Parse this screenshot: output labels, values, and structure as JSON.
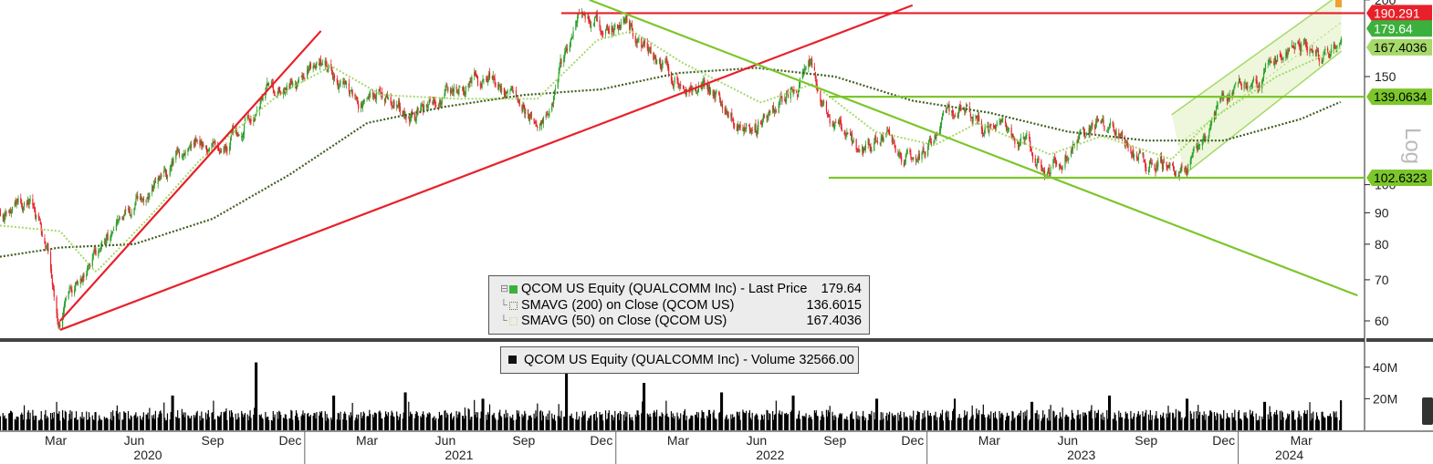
{
  "chart_data": [
    {
      "type": "candlestick",
      "title": "",
      "yscale": "log",
      "ylim": [
        55,
        200
      ],
      "y_axis_label": "Log",
      "y_ticks": [
        60,
        70,
        80,
        90,
        100,
        150,
        200
      ],
      "x_ticks": [
        "Mar",
        "Jun",
        "Sep",
        "Dec",
        "Mar",
        "Jun",
        "Sep",
        "Dec",
        "Mar",
        "Jun",
        "Sep",
        "Dec",
        "Mar",
        "Jun",
        "Sep",
        "Dec",
        "Mar"
      ],
      "x_years": [
        "2020",
        "2021",
        "2022",
        "2023",
        "2024"
      ],
      "price_path": [
        {
          "date": "2020-01-01",
          "close": 88
        },
        {
          "date": "2020-02-10",
          "close": 92
        },
        {
          "date": "2020-03-05",
          "close": 82
        },
        {
          "date": "2020-03-20",
          "close": 60
        },
        {
          "date": "2020-04-15",
          "close": 72
        },
        {
          "date": "2020-05-15",
          "close": 80
        },
        {
          "date": "2020-06-15",
          "close": 90
        },
        {
          "date": "2020-07-20",
          "close": 100
        },
        {
          "date": "2020-08-20",
          "close": 118
        },
        {
          "date": "2020-09-20",
          "close": 115
        },
        {
          "date": "2020-10-20",
          "close": 125
        },
        {
          "date": "2020-11-20",
          "close": 145
        },
        {
          "date": "2020-12-20",
          "close": 150
        },
        {
          "date": "2021-01-15",
          "close": 162
        },
        {
          "date": "2021-02-01",
          "close": 158
        },
        {
          "date": "2021-03-05",
          "close": 132
        },
        {
          "date": "2021-04-10",
          "close": 140
        },
        {
          "date": "2021-05-10",
          "close": 132
        },
        {
          "date": "2021-06-15",
          "close": 140
        },
        {
          "date": "2021-07-15",
          "close": 145
        },
        {
          "date": "2021-08-10",
          "close": 148
        },
        {
          "date": "2021-09-10",
          "close": 138
        },
        {
          "date": "2021-10-10",
          "close": 128
        },
        {
          "date": "2021-11-01",
          "close": 160
        },
        {
          "date": "2021-11-20",
          "close": 185
        },
        {
          "date": "2021-12-20",
          "close": 182
        },
        {
          "date": "2022-01-10",
          "close": 185
        },
        {
          "date": "2022-02-15",
          "close": 165
        },
        {
          "date": "2022-03-10",
          "close": 150
        },
        {
          "date": "2022-04-10",
          "close": 145
        },
        {
          "date": "2022-05-10",
          "close": 135
        },
        {
          "date": "2022-06-15",
          "close": 125
        },
        {
          "date": "2022-07-20",
          "close": 145
        },
        {
          "date": "2022-08-15",
          "close": 155
        },
        {
          "date": "2022-09-15",
          "close": 125
        },
        {
          "date": "2022-10-15",
          "close": 110
        },
        {
          "date": "2022-11-15",
          "close": 122
        },
        {
          "date": "2022-12-20",
          "close": 108
        },
        {
          "date": "2023-01-25",
          "close": 128
        },
        {
          "date": "2023-02-15",
          "close": 136
        },
        {
          "date": "2023-03-20",
          "close": 122
        },
        {
          "date": "2023-04-20",
          "close": 118
        },
        {
          "date": "2023-05-20",
          "close": 104
        },
        {
          "date": "2023-06-20",
          "close": 118
        },
        {
          "date": "2023-07-25",
          "close": 128
        },
        {
          "date": "2023-08-25",
          "close": 112
        },
        {
          "date": "2023-09-25",
          "close": 110
        },
        {
          "date": "2023-10-30",
          "close": 106
        },
        {
          "date": "2023-11-30",
          "close": 128
        },
        {
          "date": "2023-12-30",
          "close": 144
        },
        {
          "date": "2024-01-30",
          "close": 148
        },
        {
          "date": "2024-02-25",
          "close": 166
        },
        {
          "date": "2024-03-20",
          "close": 170
        },
        {
          "date": "2024-04-15",
          "close": 160
        },
        {
          "date": "2024-05-01",
          "close": 179.64
        }
      ],
      "sma200_path": [
        {
          "date": "2020-01-01",
          "value": 76
        },
        {
          "date": "2020-03-20",
          "value": 79
        },
        {
          "date": "2020-06-15",
          "value": 80
        },
        {
          "date": "2020-09-15",
          "value": 88
        },
        {
          "date": "2020-12-15",
          "value": 104
        },
        {
          "date": "2021-03-15",
          "value": 126
        },
        {
          "date": "2021-06-15",
          "value": 134
        },
        {
          "date": "2021-09-15",
          "value": 140
        },
        {
          "date": "2021-12-15",
          "value": 143
        },
        {
          "date": "2022-03-15",
          "value": 152
        },
        {
          "date": "2022-06-15",
          "value": 155
        },
        {
          "date": "2022-09-15",
          "value": 150
        },
        {
          "date": "2022-12-15",
          "value": 137
        },
        {
          "date": "2023-03-15",
          "value": 131
        },
        {
          "date": "2023-06-15",
          "value": 122
        },
        {
          "date": "2023-09-15",
          "value": 118
        },
        {
          "date": "2023-12-15",
          "value": 118
        },
        {
          "date": "2024-03-15",
          "value": 128
        },
        {
          "date": "2024-05-01",
          "value": 136.6015
        }
      ],
      "sma50_path": [
        {
          "date": "2020-01-01",
          "value": 86
        },
        {
          "date": "2020-03-20",
          "value": 84
        },
        {
          "date": "2020-05-01",
          "value": 72
        },
        {
          "date": "2020-07-01",
          "value": 88
        },
        {
          "date": "2020-09-01",
          "value": 110
        },
        {
          "date": "2020-12-01",
          "value": 140
        },
        {
          "date": "2021-02-01",
          "value": 156
        },
        {
          "date": "2021-04-01",
          "value": 140
        },
        {
          "date": "2021-07-01",
          "value": 138
        },
        {
          "date": "2021-10-01",
          "value": 138
        },
        {
          "date": "2021-12-10",
          "value": 172
        },
        {
          "date": "2022-01-20",
          "value": 178
        },
        {
          "date": "2022-03-20",
          "value": 158
        },
        {
          "date": "2022-06-20",
          "value": 136
        },
        {
          "date": "2022-08-20",
          "value": 146
        },
        {
          "date": "2022-11-01",
          "value": 122
        },
        {
          "date": "2023-01-10",
          "value": 116
        },
        {
          "date": "2023-03-01",
          "value": 126
        },
        {
          "date": "2023-05-25",
          "value": 112
        },
        {
          "date": "2023-07-25",
          "value": 120
        },
        {
          "date": "2023-10-15",
          "value": 110
        },
        {
          "date": "2023-12-01",
          "value": 128
        },
        {
          "date": "2024-02-15",
          "value": 150
        },
        {
          "date": "2024-05-01",
          "value": 167.4036
        }
      ],
      "trendlines": [
        {
          "name": "red-support-steep",
          "color": "#e8202a",
          "points": [
            {
              "date": "2020-03-20",
              "value": 60
            },
            {
              "date": "2021-01-20",
              "value": 178
            }
          ]
        },
        {
          "name": "red-support-long",
          "color": "#e8202a",
          "points": [
            {
              "date": "2020-03-20",
              "value": 58
            },
            {
              "date": "2022-12-15",
              "value": 196
            }
          ]
        },
        {
          "name": "red-resistance",
          "color": "#e8202a",
          "points": [
            {
              "date": "2021-10-15",
              "value": 190.291
            },
            {
              "date": "2024-05-01",
              "value": 190.291
            }
          ]
        },
        {
          "name": "green-downtrend",
          "color": "#7cc62b",
          "points": [
            {
              "date": "2021-12-01",
              "value": 200
            },
            {
              "date": "2024-05-20",
              "value": 66
            }
          ]
        },
        {
          "name": "green-resistance",
          "color": "#7cc62b",
          "points": [
            {
              "date": "2022-09-01",
              "value": 139.0634
            },
            {
              "date": "2024-05-01",
              "value": 139.0634
            }
          ]
        },
        {
          "name": "green-support",
          "color": "#7cc62b",
          "points": [
            {
              "date": "2022-09-01",
              "value": 102.6323
            },
            {
              "date": "2024-05-01",
              "value": 102.6323
            }
          ]
        }
      ],
      "channel": {
        "color": "#a6d96a",
        "lower": [
          {
            "date": "2023-10-30",
            "value": 104
          },
          {
            "date": "2024-05-01",
            "value": 165
          }
        ],
        "upper": [
          {
            "date": "2023-10-15",
            "value": 130
          },
          {
            "date": "2024-05-01",
            "value": 205
          }
        ]
      },
      "price_labels": [
        {
          "value": 190.291,
          "text": "190.291",
          "color": "#e8202a",
          "text_color": "#ffffff"
        },
        {
          "value": 179.64,
          "text": "179.64",
          "color": "#3cb03c",
          "text_color": "#ffffff"
        },
        {
          "value": 167.4036,
          "text": "167.4036",
          "color": "#a6d96a",
          "text_color": "#000000"
        },
        {
          "value": 139.0634,
          "text": "139.0634",
          "color": "#7cc62b",
          "text_color": "#000000"
        },
        {
          "value": 102.6323,
          "text": "102.6323",
          "color": "#7cc62b",
          "text_color": "#000000"
        }
      ],
      "legend": {
        "position": "bottom-center",
        "items": [
          {
            "label": "QCOM US Equity (QUALCOMM Inc) - Last Price",
            "value": "179.64",
            "swatch": "solid-green"
          },
          {
            "label": "SMAVG (200)  on Close (QCOM US)",
            "value": "136.6015",
            "swatch": "dotted-dark-green"
          },
          {
            "label": "SMAVG (50)  on Close (QCOM US)",
            "value": "167.4036",
            "swatch": "dotted-light-green"
          }
        ]
      }
    },
    {
      "type": "bar",
      "title": "",
      "y_ticks": [
        "20M",
        "40M"
      ],
      "ylim": [
        0,
        52
      ],
      "unit": "M",
      "volume_spikes": [
        {
          "date": "2020-03-15",
          "value": 18
        },
        {
          "date": "2020-07-30",
          "value": 22
        },
        {
          "date": "2020-11-05",
          "value": 43
        },
        {
          "date": "2021-02-04",
          "value": 22
        },
        {
          "date": "2021-04-29",
          "value": 24
        },
        {
          "date": "2021-07-29",
          "value": 20
        },
        {
          "date": "2021-11-04",
          "value": 38
        },
        {
          "date": "2022-02-03",
          "value": 30
        },
        {
          "date": "2022-05-05",
          "value": 24
        },
        {
          "date": "2022-07-28",
          "value": 22
        },
        {
          "date": "2022-11-03",
          "value": 20
        },
        {
          "date": "2023-02-03",
          "value": 20
        },
        {
          "date": "2023-05-04",
          "value": 18
        },
        {
          "date": "2023-08-03",
          "value": 22
        },
        {
          "date": "2023-11-02",
          "value": 20
        },
        {
          "date": "2024-02-01",
          "value": 18
        },
        {
          "date": "2024-05-01",
          "value": 19
        }
      ],
      "legend": {
        "label": "QCOM US Equity (QUALCOMM Inc) - Volume",
        "value": "32566.00"
      }
    }
  ]
}
